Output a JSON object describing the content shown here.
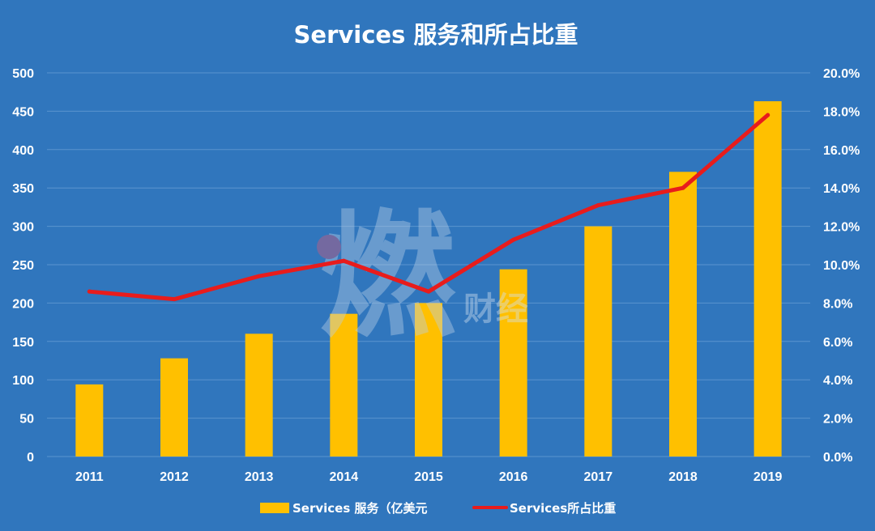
{
  "chart_data": {
    "type": "bar",
    "title": "Services 服务和所占比重",
    "categories": [
      "2011",
      "2012",
      "2013",
      "2014",
      "2015",
      "2016",
      "2017",
      "2018",
      "2019"
    ],
    "series": [
      {
        "name": "Services 服务（亿美元",
        "type": "bar",
        "axis": "left",
        "color": "#ffc000",
        "values": [
          94,
          128,
          160,
          186,
          200,
          244,
          300,
          371,
          463
        ]
      },
      {
        "name": "Services所占比重",
        "type": "line",
        "axis": "right",
        "color": "#e81c1c",
        "values": [
          8.6,
          8.2,
          9.4,
          10.2,
          8.6,
          11.3,
          13.1,
          14.0,
          17.8
        ]
      }
    ],
    "left_axis": {
      "min": 0,
      "max": 500,
      "ticks": [
        "0",
        "50",
        "100",
        "150",
        "200",
        "250",
        "300",
        "350",
        "400",
        "450",
        "500"
      ]
    },
    "right_axis": {
      "min": 0,
      "max": 20,
      "ticks": [
        "0.0%",
        "2.0%",
        "4.0%",
        "6.0%",
        "8.0%",
        "10.0%",
        "12.0%",
        "14.0%",
        "16.0%",
        "18.0%",
        "20.0%"
      ]
    },
    "grid": true,
    "legend_position": "bottom-center"
  },
  "watermark": {
    "glyph": "燃",
    "text": "财经"
  },
  "colors": {
    "background": "#3076bd",
    "grid": "#5a94cf",
    "bar": "#ffc000",
    "line": "#e81c1c"
  }
}
